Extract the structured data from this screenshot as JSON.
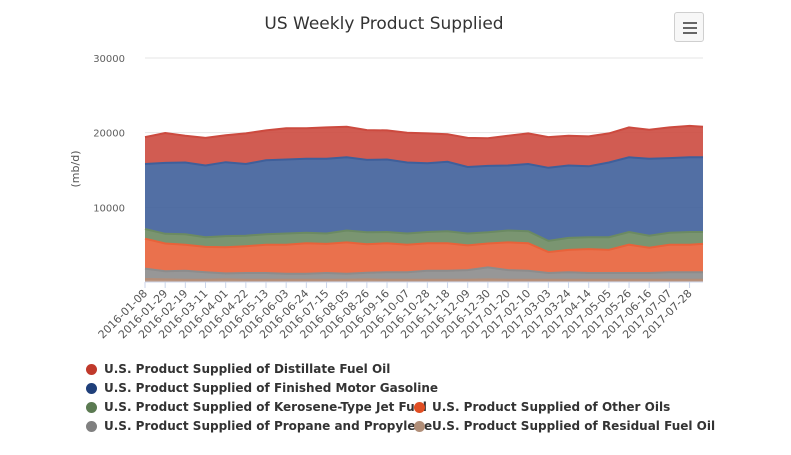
{
  "title": "US Weekly Product Supplied",
  "menu_icon": "hamburger-menu-icon",
  "chart_data": {
    "type": "area",
    "stacked": true,
    "title": "US Weekly Product Supplied",
    "ylabel": "(mb/d)",
    "xlabel": "",
    "ylim": [
      0,
      30000
    ],
    "y_ticks": [
      "10000",
      "20000",
      "30000"
    ],
    "grid": true,
    "legend_position": "bottom",
    "x_tick_labels": [
      "2016-01-08",
      "2016-01-29",
      "2016-02-19",
      "2016-03-11",
      "2016-04-01",
      "2016-04-22",
      "2016-05-13",
      "2016-06-03",
      "2016-06-24",
      "2016-07-15",
      "2016-08-05",
      "2016-08-26",
      "2016-09-16",
      "2016-10-07",
      "2016-10-28",
      "2016-11-18",
      "2016-12-09",
      "2016-12-30",
      "2017-01-20",
      "2017-02-10",
      "2017-03-03",
      "2017-03-24",
      "2017-04-14",
      "2017-05-05",
      "2017-05-26",
      "2017-06-16",
      "2017-07-07",
      "2017-07-28"
    ],
    "x": [
      "2016-01-08",
      "2016-01-29",
      "2016-02-19",
      "2016-03-11",
      "2016-04-01",
      "2016-04-22",
      "2016-05-13",
      "2016-06-03",
      "2016-06-24",
      "2016-07-15",
      "2016-08-05",
      "2016-08-26",
      "2016-09-16",
      "2016-10-07",
      "2016-10-28",
      "2016-11-18",
      "2016-12-09",
      "2016-12-30",
      "2017-01-20",
      "2017-02-10",
      "2017-03-03",
      "2017-03-24",
      "2017-04-14",
      "2017-05-05",
      "2017-05-26",
      "2017-06-16",
      "2017-07-07",
      "2017-07-28",
      "2017-08-11"
    ],
    "series": [
      {
        "name": "U.S. Product Supplied of Residual Fuel Oil",
        "color": "#b58e78",
        "values": [
          400,
          350,
          300,
          300,
          350,
          300,
          300,
          300,
          300,
          300,
          300,
          350,
          300,
          300,
          300,
          300,
          300,
          350,
          300,
          300,
          300,
          300,
          300,
          300,
          300,
          300,
          300,
          300,
          300
        ]
      },
      {
        "name": "U.S. Product Supplied of Propane and Propylene",
        "color": "#8c8c8c",
        "values": [
          1400,
          1100,
          1200,
          1000,
          800,
          900,
          900,
          800,
          800,
          900,
          800,
          900,
          1000,
          1000,
          1200,
          1200,
          1300,
          1600,
          1300,
          1200,
          900,
          1000,
          900,
          900,
          900,
          900,
          1000,
          1000,
          1000
        ]
      },
      {
        "name": "U.S. Product Supplied of Other Oils",
        "color": "#e8623a",
        "values": [
          4000,
          3700,
          3500,
          3400,
          3500,
          3600,
          3800,
          3900,
          4100,
          3900,
          4200,
          3800,
          3900,
          3700,
          3700,
          3700,
          3300,
          3200,
          3700,
          3700,
          2800,
          3000,
          3200,
          3100,
          3800,
          3400,
          3700,
          3700,
          3800
        ]
      },
      {
        "name": "U.S. Product Supplied of Kerosene-Type Jet Fuel",
        "color": "#6b8a62",
        "values": [
          1300,
          1300,
          1400,
          1300,
          1500,
          1400,
          1400,
          1500,
          1400,
          1400,
          1600,
          1600,
          1500,
          1500,
          1500,
          1600,
          1600,
          1500,
          1600,
          1600,
          1500,
          1600,
          1600,
          1700,
          1700,
          1600,
          1600,
          1700,
          1600
        ]
      },
      {
        "name": "U.S. Product Supplied of Finished Motor Gasoline",
        "color": "#3f5f9a",
        "values": [
          8700,
          9500,
          9600,
          9600,
          9900,
          9600,
          9900,
          9900,
          9900,
          10000,
          9800,
          9700,
          9700,
          9500,
          9200,
          9300,
          8900,
          8900,
          8700,
          9000,
          9800,
          9700,
          9500,
          10000,
          10000,
          10300,
          10000,
          10000,
          10000
        ]
      },
      {
        "name": "U.S. Product Supplied of Distillate Fuel Oil",
        "color": "#cc4a3f",
        "values": [
          3600,
          4000,
          3600,
          3700,
          3600,
          4100,
          4000,
          4200,
          4100,
          4200,
          4100,
          4000,
          3900,
          4000,
          4000,
          3700,
          3900,
          3700,
          4000,
          4100,
          4100,
          4000,
          4000,
          3900,
          4000,
          3900,
          4100,
          4200,
          4100
        ]
      }
    ]
  },
  "legend": [
    {
      "label": "U.S. Product Supplied of Distillate Fuel Oil",
      "color": "#c0392b"
    },
    {
      "label": "U.S. Product Supplied of Finished Motor Gasoline",
      "color": "#1f3f7a"
    },
    {
      "label": "U.S. Product Supplied of Kerosene-Type Jet Fuel",
      "color": "#5b7a52"
    },
    {
      "label": "U.S. Product Supplied of Other Oils",
      "color": "#e04e23"
    },
    {
      "label": "U.S. Product Supplied of Propane and Propylene",
      "color": "#808080"
    },
    {
      "label": "U.S. Product Supplied of Residual Fuel Oil",
      "color": "#b08e78"
    }
  ]
}
